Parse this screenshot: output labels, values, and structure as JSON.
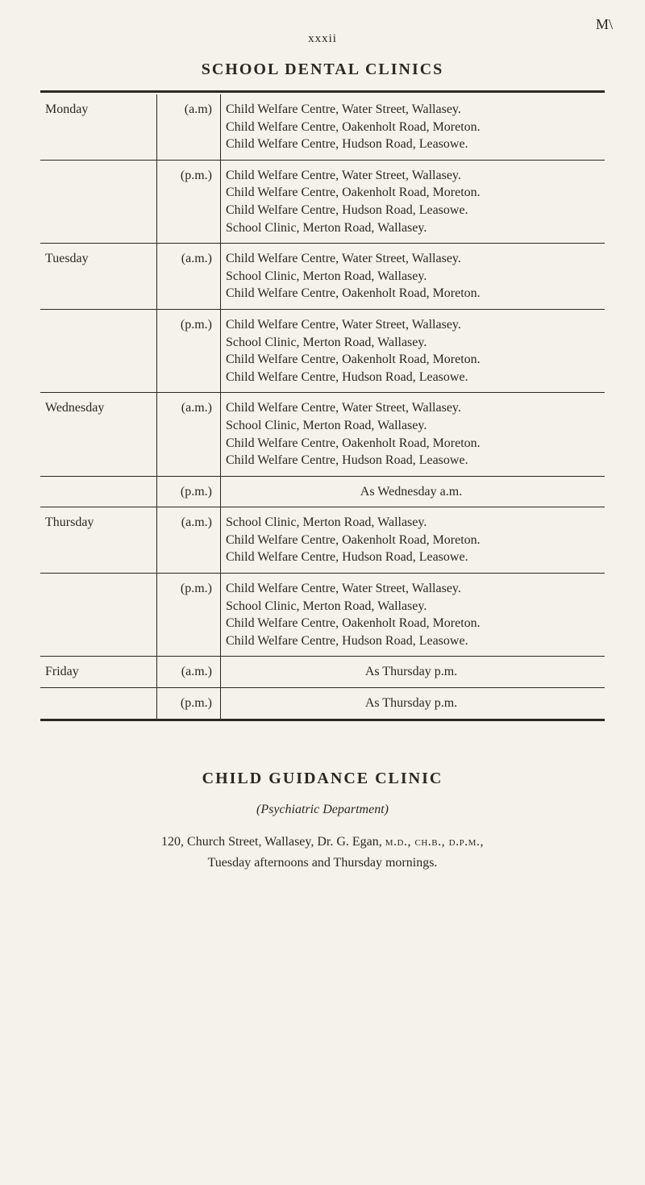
{
  "page_number": "xxxii",
  "top_mark": "M\\",
  "title": "SCHOOL DENTAL CLINICS",
  "schedule": [
    {
      "day": "Monday",
      "time": "(a.m)",
      "desc": "Child Welfare Centre, Water Street, Wallasey.\nChild Welfare Centre, Oakenholt Road, Moreton.\nChild Welfare Centre, Hudson Road, Leasowe.",
      "day_start": true
    },
    {
      "day": "",
      "time": "(p.m.)",
      "desc": "Child Welfare Centre, Water Street, Wallasey.\nChild Welfare Centre, Oakenholt Road, Moreton.\nChild Welfare Centre, Hudson Road, Leasowe.\nSchool Clinic, Merton Road, Wallasey."
    },
    {
      "day": "Tuesday",
      "time": "(a.m.)",
      "desc": "Child Welfare Centre, Water Street, Wallasey.\nSchool Clinic, Merton Road, Wallasey.\nChild Welfare Centre, Oakenholt Road, Moreton.",
      "day_start": true
    },
    {
      "day": "",
      "time": "(p.m.)",
      "desc": "Child Welfare Centre, Water Street, Wallasey.\nSchool Clinic, Merton Road, Wallasey.\nChild Welfare Centre, Oakenholt Road, Moreton.\nChild Welfare Centre, Hudson Road, Leasowe."
    },
    {
      "day": "Wednesday",
      "time": "(a.m.)",
      "desc": "Child Welfare Centre, Water Street, Wallasey.\nSchool Clinic, Merton Road, Wallasey.\nChild Welfare Centre, Oakenholt Road, Moreton.\nChild Welfare Centre, Hudson Road, Leasowe.",
      "day_start": true
    },
    {
      "day": "",
      "time": "(p.m.)",
      "desc": "As Wednesday a.m.",
      "centered": true
    },
    {
      "day": "Thursday",
      "time": "(a.m.)",
      "desc": "School Clinic, Merton Road, Wallasey.\nChild Welfare Centre, Oakenholt Road, Moreton.\nChild Welfare Centre, Hudson Road, Leasowe.",
      "day_start": true
    },
    {
      "day": "",
      "time": "(p.m.)",
      "desc": "Child Welfare Centre, Water Street, Wallasey.\nSchool Clinic, Merton Road, Wallasey.\nChild Welfare Centre, Oakenholt Road, Moreton.\nChild Welfare Centre, Hudson Road, Leasowe."
    },
    {
      "day": "Friday",
      "time": "(a.m.)",
      "desc": "As Thursday p.m.",
      "centered": true,
      "day_start": true
    },
    {
      "day": "",
      "time": "(p.m.)",
      "desc": "As Thursday p.m.",
      "centered": true
    }
  ],
  "section2_title": "CHILD GUIDANCE CLINIC",
  "section2_sub": "(Psychiatric Department)",
  "section2_addr_prefix": "120, Church Street, Wallasey, Dr. G. Egan, ",
  "section2_addr_quals": "m.d., ch.b., d.p.m.,",
  "section2_line2": "Tuesday afternoons and Thursday mornings."
}
